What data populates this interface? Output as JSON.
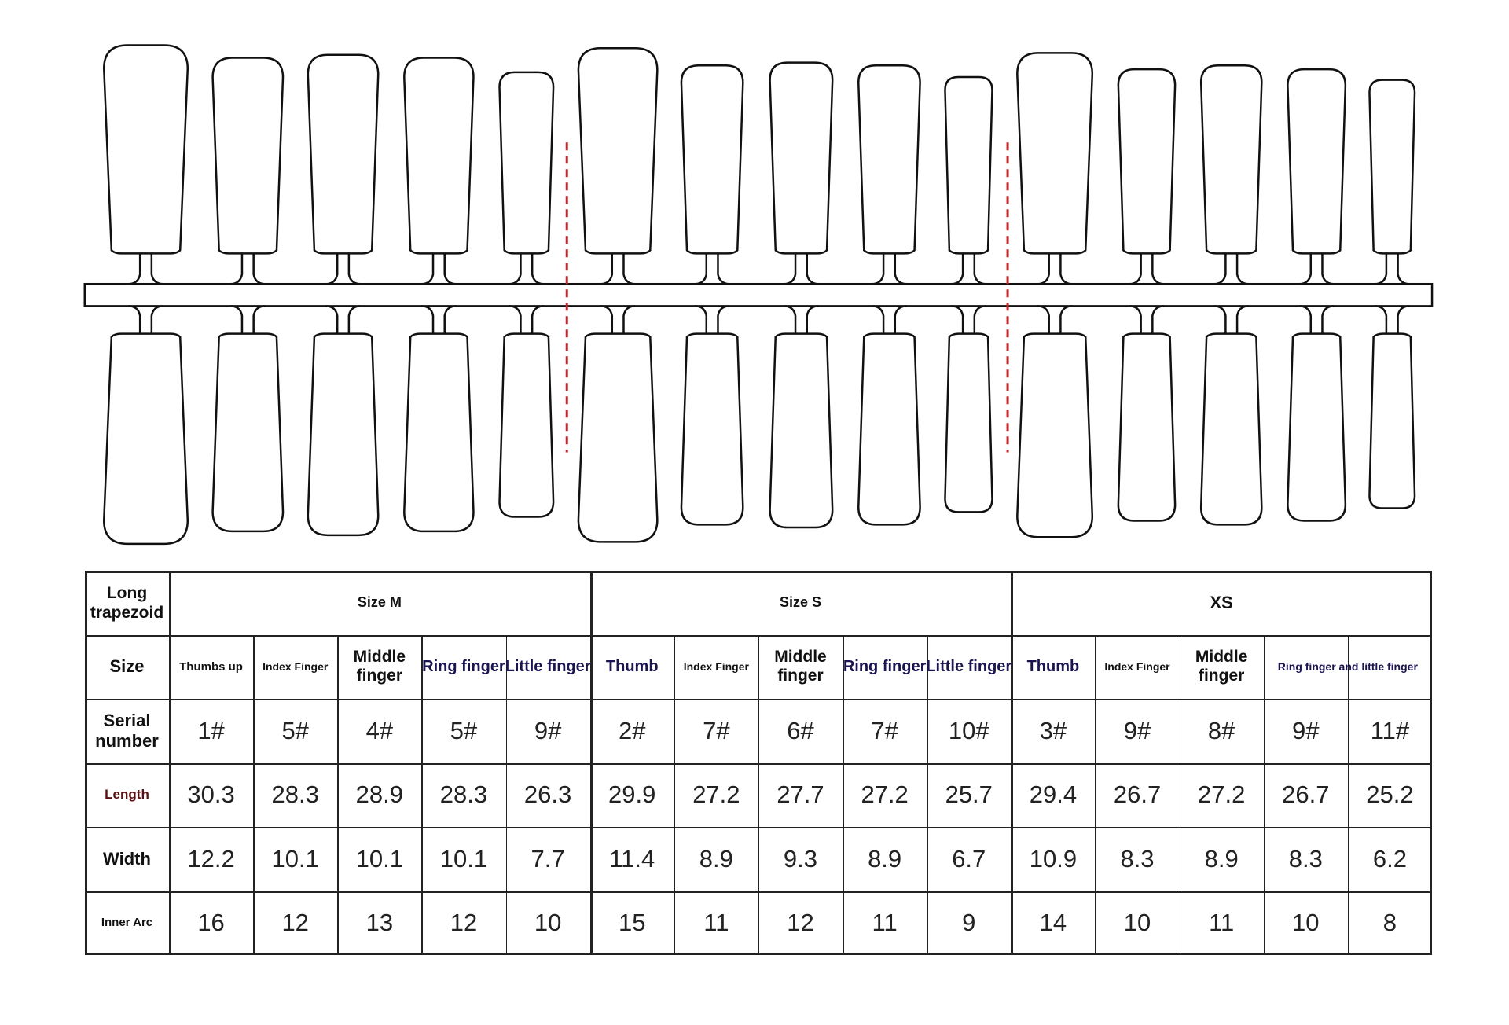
{
  "corner_label": "Long trapezoid",
  "groups": [
    "Size M",
    "Size S",
    "XS"
  ],
  "size_row": {
    "label": "Size",
    "cells": [
      "Thumbs up",
      "Index Finger",
      "Middle finger",
      "Ring finger",
      "Little finger",
      "Thumb",
      "Index Finger",
      "Middle finger",
      "Ring finger",
      "Little finger",
      "Thumb",
      "Index Finger",
      "Middle finger",
      "Ring finger and little finger"
    ]
  },
  "rows": [
    {
      "label": "Serial number",
      "values": [
        "1#",
        "5#",
        "4#",
        "5#",
        "9#",
        "2#",
        "7#",
        "6#",
        "7#",
        "10#",
        "3#",
        "9#",
        "8#",
        "9#",
        "11#"
      ]
    },
    {
      "label": "Length",
      "values": [
        "30.3",
        "28.3",
        "28.9",
        "28.3",
        "26.3",
        "29.9",
        "27.2",
        "27.7",
        "27.2",
        "25.7",
        "29.4",
        "26.7",
        "27.2",
        "26.7",
        "25.2"
      ]
    },
    {
      "label": "Width",
      "values": [
        "12.2",
        "10.1",
        "10.1",
        "10.1",
        "7.7",
        "11.4",
        "8.9",
        "9.3",
        "8.9",
        "6.7",
        "10.9",
        "8.3",
        "8.9",
        "8.3",
        "6.2"
      ]
    },
    {
      "label": "Inner Arc",
      "values": [
        "16",
        "12",
        "13",
        "12",
        "10",
        "15",
        "11",
        "12",
        "11",
        "9",
        "14",
        "10",
        "11",
        "10",
        "8"
      ]
    }
  ],
  "colors": {
    "divider": "#c0282d",
    "outline": "#111111",
    "highlight_text": "#1a1450"
  }
}
